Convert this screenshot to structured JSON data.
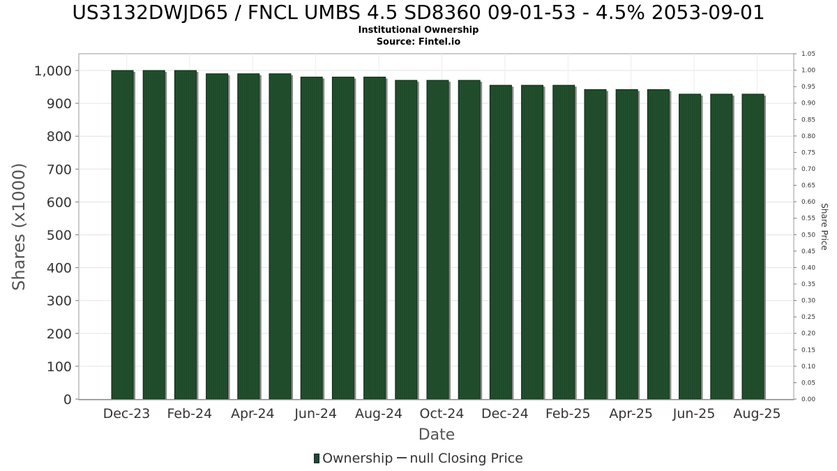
{
  "chart_data": {
    "type": "bar",
    "title": "US3132DWJD65 / FNCL UMBS 4.5 SD8360 09-01-53 - 4.5% 2053-09-01",
    "subtitle": "Institutional Ownership",
    "source": "Source: Fintel.io",
    "xlabel": "Date",
    "ylabel": "Shares (x1000)",
    "y2label": "Share Price",
    "ylim": [
      0,
      1050
    ],
    "y2lim": [
      0,
      1.05
    ],
    "yticks": [
      0,
      100,
      200,
      300,
      400,
      500,
      600,
      700,
      800,
      900,
      1000
    ],
    "ytick_labels": [
      "0",
      "100",
      "200",
      "300",
      "400",
      "500",
      "600",
      "700",
      "800",
      "900",
      "1,000"
    ],
    "y2ticks": [
      "0.00",
      "0.05",
      "0.10",
      "0.15",
      "0.20",
      "0.25",
      "0.30",
      "0.35",
      "0.40",
      "0.45",
      "0.50",
      "0.55",
      "0.60",
      "0.65",
      "0.70",
      "0.75",
      "0.80",
      "0.85",
      "0.90",
      "0.95",
      "1.00",
      "1.05"
    ],
    "xtick_labels": [
      "Dec-23",
      "Feb-24",
      "Apr-24",
      "Jun-24",
      "Aug-24",
      "Oct-24",
      "Dec-24",
      "Feb-25",
      "Apr-25",
      "Jun-25",
      "Aug-25"
    ],
    "grid": true,
    "legend_position": "bottom",
    "series": [
      {
        "name": "Ownership",
        "color": "#1f4a2a",
        "values": [
          1000,
          1000,
          1000,
          990,
          990,
          990,
          980,
          980,
          980,
          970,
          970,
          970,
          955,
          955,
          955,
          942,
          942,
          942,
          928,
          928,
          928
        ]
      }
    ],
    "legend": [
      {
        "label": "Ownership",
        "kind": "bar",
        "color": "#1f4a2a"
      },
      {
        "label": "null Closing Price",
        "kind": "line",
        "color": "#444444"
      }
    ]
  }
}
